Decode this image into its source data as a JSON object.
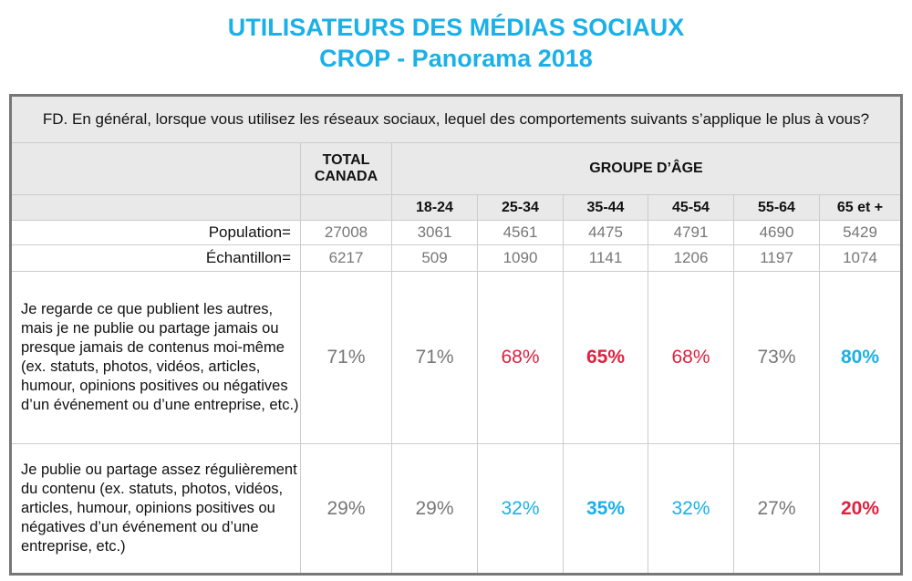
{
  "title": {
    "line1": "UTILISATEURS DES MÉDIAS SOCIAUX",
    "line2": "CROP - Panorama 2018"
  },
  "question": "FD. En général, lorsque vous utilisez les réseaux sociaux, lequel des comportements suivants s’applique le plus à vous?",
  "header": {
    "total": "TOTAL CANADA",
    "group": "GROUPE D’ÂGE",
    "ages": [
      "18-24",
      "25-34",
      "35-44",
      "45-54",
      "55-64",
      "65 et +"
    ]
  },
  "population": {
    "label": "Population=",
    "values": [
      "27008",
      "3061",
      "4561",
      "4475",
      "4791",
      "4690",
      "5429"
    ]
  },
  "sample": {
    "label": "Échantillon=",
    "values": [
      "6217",
      "509",
      "1090",
      "1141",
      "1206",
      "1197",
      "1074"
    ]
  },
  "colors": {
    "blue": "#1ab0e8",
    "red": "#e0213f",
    "gray": "#777777"
  },
  "rows": [
    {
      "label": "Je regarde ce que publient les autres, mais je ne publie ou partage jamais ou presque jamais de contenus moi-même (ex. statuts, photos, vidéos, articles, humour, opinions positives ou négatives d’un événement ou d’une entreprise, etc.)",
      "values": [
        "71%",
        "71%",
        "68%",
        "65%",
        "68%",
        "73%",
        "80%"
      ],
      "styles": [
        "",
        "",
        "red",
        "red b",
        "red",
        "",
        "blue b"
      ]
    },
    {
      "label": "Je publie ou partage assez régulièrement du contenu (ex. statuts, photos, vidéos, articles, humour, opinions positives ou négatives d’un événement ou d’une entreprise, etc.)",
      "values": [
        "29%",
        "29%",
        "32%",
        "35%",
        "32%",
        "27%",
        "20%"
      ],
      "styles": [
        "",
        "",
        "blue",
        "blue b",
        "blue",
        "",
        "red b"
      ]
    }
  ]
}
